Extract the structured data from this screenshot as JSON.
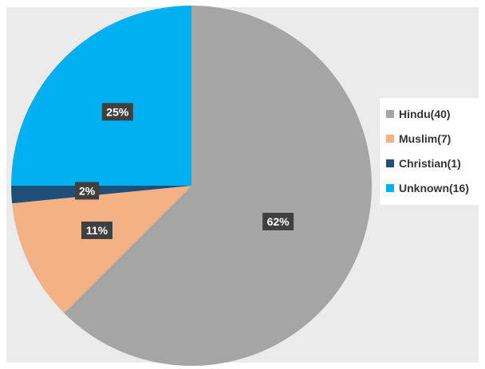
{
  "chart_data": {
    "type": "pie",
    "title": "",
    "slices": [
      {
        "category": "Hindu",
        "count": 40,
        "percent": 62,
        "label": "62%",
        "legend": "Hindu(40)",
        "color": "#a5a5a5"
      },
      {
        "category": "Muslim",
        "count": 7,
        "percent": 11,
        "label": "11%",
        "legend": "Muslim(7)",
        "color": "#f4b183"
      },
      {
        "category": "Christian",
        "count": 1,
        "percent": 2,
        "label": "2%",
        "legend": "Christian(1)",
        "color": "#1f4e79"
      },
      {
        "category": "Unknown",
        "count": 16,
        "percent": 25,
        "label": "25%",
        "legend": "Unknown(16)",
        "color": "#00b0f0"
      }
    ],
    "start_angle_deg": 0,
    "direction": "clockwise",
    "legend_position": "right",
    "data_label_style": {
      "background": "#404040",
      "text_color": "#ffffff"
    },
    "background_color": "#ebebeb"
  }
}
